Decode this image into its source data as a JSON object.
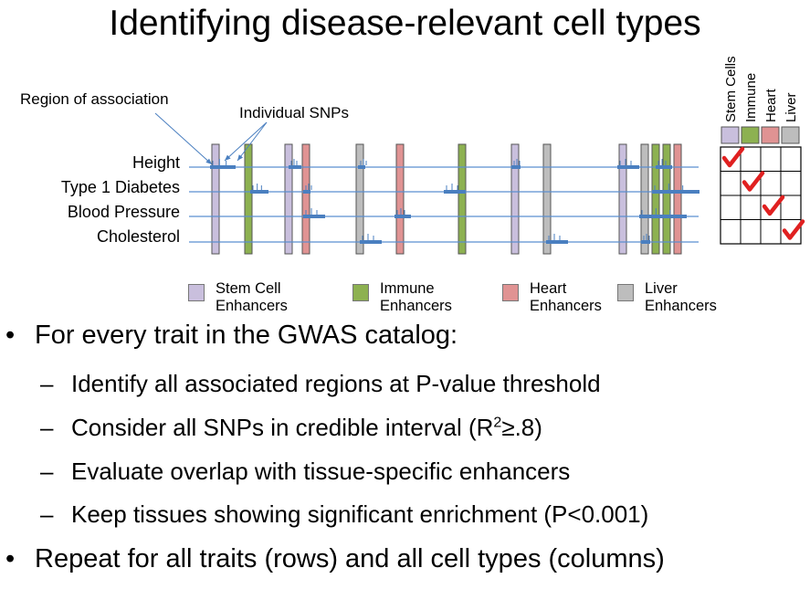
{
  "title": "Identifying disease-relevant cell types",
  "annotations": {
    "region": "Region of association",
    "snps": "Individual SNPs"
  },
  "traits": [
    "Height",
    "Type 1 Diabetes",
    "Blood Pressure",
    "Cholesterol"
  ],
  "legend": [
    {
      "line1": "Stem Cell",
      "line2": "Enhancers",
      "color": "#c9bfdd"
    },
    {
      "line1": "Immune",
      "line2": "Enhancers",
      "color": "#8db151"
    },
    {
      "line1": "Heart",
      "line2": "Enhancers",
      "color": "#e09393"
    },
    {
      "line1": "Liver",
      "line2": "Enhancers",
      "color": "#bdbdbd"
    }
  ],
  "matrix": {
    "columns": [
      "Stem Cells",
      "Immune",
      "Heart",
      "Liver"
    ],
    "column_colors": [
      "#c9bfdd",
      "#8db151",
      "#e09393",
      "#bdbdbd"
    ],
    "check_color": "#e02020"
  },
  "colors": {
    "trait_line": "#5b8fd0",
    "snp": "#4a7fc0"
  },
  "bullets": {
    "b1": "For every trait in the GWAS catalog:",
    "s1": "Identify all associated regions at P-value threshold",
    "s2_pre": "Consider all SNPs in credible interval (R",
    "s2_sup": "2",
    "s2_post": "≥.8)",
    "s3": "Evaluate overlap with tissue-specific enhancers",
    "s4": "Keep tissues showing significant enrichment (P<0.001)",
    "b2": "Repeat for all traits (rows) and all cell types (columns)"
  }
}
